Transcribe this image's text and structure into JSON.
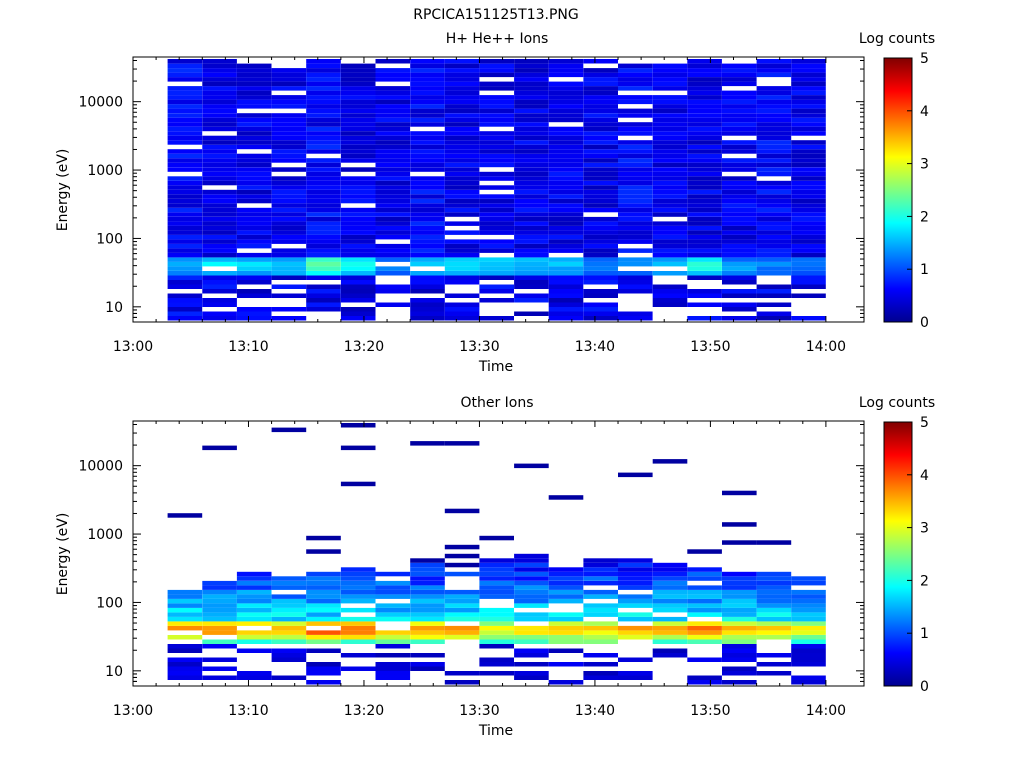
{
  "figure": {
    "title": "RPCICA151125T13.PNG"
  },
  "chart_data": [
    {
      "type": "heatmap",
      "title": "H+ He++ Ions",
      "xlabel": "Time",
      "ylabel": "Energy (eV)",
      "x_ticks": [
        "13:00",
        "13:10",
        "13:20",
        "13:30",
        "13:40",
        "13:50",
        "14:00"
      ],
      "y_ticks": [
        "10",
        "100",
        "1000",
        "10000"
      ],
      "y_scale": "log",
      "ylim": [
        6,
        45000
      ],
      "colorbar": {
        "label": "Log counts",
        "range": [
          0,
          5
        ],
        "ticks": [
          "0",
          "1",
          "2",
          "3",
          "4",
          "5"
        ]
      },
      "time_bins": [
        "13:03",
        "13:06",
        "13:09",
        "13:12",
        "13:15",
        "13:18",
        "13:21",
        "13:24",
        "13:27",
        "13:30",
        "13:33",
        "13:36",
        "13:39",
        "13:42",
        "13:45",
        "13:48",
        "13:51",
        "13:54",
        "13:57"
      ],
      "energy_peak_ev": 40,
      "peak_log_counts": [
        1.6,
        1.9,
        1.8,
        1.7,
        2.3,
        1.9,
        1.5,
        1.7,
        1.8,
        1.8,
        1.7,
        1.6,
        1.3,
        1.5,
        1.7,
        2.0,
        1.5,
        1.4,
        1.3
      ],
      "background_log_counts": [
        0.6,
        0.5,
        0.5,
        0.5,
        0.6,
        0.5,
        0.5,
        0.6,
        0.5,
        0.5,
        0.5,
        0.5,
        0.5,
        0.6,
        0.5,
        0.5,
        0.5,
        0.6,
        0.5
      ]
    },
    {
      "type": "heatmap",
      "title": "Other Ions",
      "xlabel": "Time",
      "ylabel": "Energy (eV)",
      "x_ticks": [
        "13:00",
        "13:10",
        "13:20",
        "13:30",
        "13:40",
        "13:50",
        "14:00"
      ],
      "y_ticks": [
        "10",
        "100",
        "1000",
        "10000"
      ],
      "y_scale": "log",
      "ylim": [
        6,
        45000
      ],
      "colorbar": {
        "label": "Log counts",
        "range": [
          0,
          5
        ],
        "ticks": [
          "0",
          "1",
          "2",
          "3",
          "4",
          "5"
        ]
      },
      "time_bins": [
        "13:03",
        "13:06",
        "13:09",
        "13:12",
        "13:15",
        "13:18",
        "13:21",
        "13:24",
        "13:27",
        "13:30",
        "13:33",
        "13:36",
        "13:39",
        "13:42",
        "13:45",
        "13:48",
        "13:51",
        "13:54",
        "13:57"
      ],
      "energy_peak_ev": 40,
      "peak_log_counts": [
        3.8,
        3.9,
        3.8,
        3.7,
        4.2,
        4.0,
        3.7,
        3.9,
        3.8,
        3.3,
        3.5,
        3.6,
        3.5,
        3.8,
        3.7,
        4.0,
        3.6,
        3.5,
        3.3
      ],
      "upper_extent_ev": [
        150,
        200,
        300,
        250,
        280,
        320,
        350,
        400,
        300,
        450,
        500,
        380,
        420,
        550,
        450,
        320,
        280,
        300,
        280
      ]
    }
  ]
}
